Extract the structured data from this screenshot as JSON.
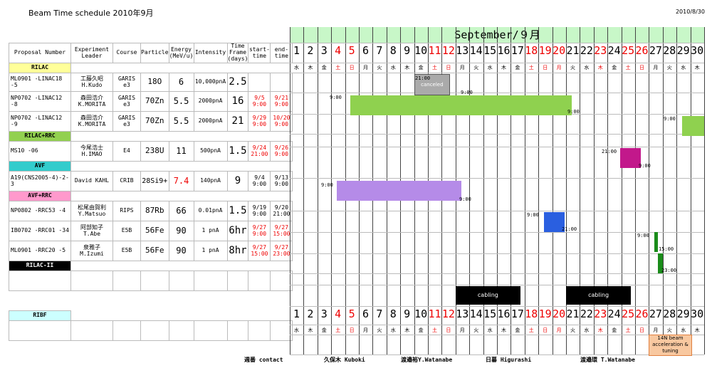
{
  "title": "Beam Time schedule  2010年9月",
  "date": "2010/8/30",
  "month_label": "September/９月",
  "headers": [
    "Proposal Number",
    "Experiment Leader",
    "Course",
    "Particle",
    "Energy (MeV/u)",
    "Intensity",
    "Time Frame (days)",
    "start-time",
    "end-time"
  ],
  "sections": {
    "rilac": "RILAC",
    "rilac_rrc": "RILAC+RRC",
    "avf": "AVF",
    "avf_rrc": "AVF+RRC",
    "rilac2": "RILAC-II",
    "ribf": "RIBF"
  },
  "rows": [
    {
      "pn": "ML0901 -LINAC18 -5",
      "leader": "工藤久昭",
      "leader_en": "H.Kudo",
      "course": "GARIS e3",
      "particle": "18O",
      "energy": "6",
      "intensity": "10,000pnA",
      "frame": "2.5",
      "start": "",
      "end": ""
    },
    {
      "pn": "NP0702 -LINAC12 -8",
      "leader": "森田浩介",
      "leader_en": "K.MORITA",
      "course": "GARIS e3",
      "particle": "70Zn",
      "energy": "5.5",
      "intensity": "2000pnA",
      "frame": "16",
      "start": "9/5 9:00",
      "end": "9/21 9:00"
    },
    {
      "pn": "NP0702 -LINAC12 -9",
      "leader": "森田浩介",
      "leader_en": "K.MORITA",
      "course": "GARIS e3",
      "particle": "70Zn",
      "energy": "5.5",
      "intensity": "2000pnA",
      "frame": "21",
      "start": "9/29 9:00",
      "end": "10/20 9:00"
    },
    {
      "pn": "MS10    -06",
      "leader": "今尾浩士",
      "leader_en": "H.IMAO",
      "course": "E4",
      "particle": "238U",
      "energy": "11",
      "intensity": "500pnA",
      "frame": "1.5",
      "start": "9/24 21:00",
      "end": "9/26 9:00"
    },
    {
      "pn": "A19(CNS2005-4)-2-3",
      "leader": "David KAHL",
      "leader_en": "",
      "course": "CRIB",
      "particle": "28Si9+",
      "energy": "7.4",
      "intensity": "140pnA",
      "frame": "9",
      "start": "9/4 9:00",
      "end": "9/13 9:00"
    },
    {
      "pn": "NP0802 -RRC53   -4",
      "leader": "松尾由賀利",
      "leader_en": "Y.Matsuo",
      "course": "RIPS",
      "particle": "87Rb",
      "energy": "66",
      "intensity": "0.01pnA",
      "frame": "1.5",
      "start": "9/19 9:00",
      "end": "9/20 21:00"
    },
    {
      "pn": "IB0702 -RRC01  -34",
      "leader": "阿部知子",
      "leader_en": "T.Abe",
      "course": "E5B",
      "particle": "56Fe",
      "energy": "90",
      "intensity": "1 pnA",
      "frame": "6hr",
      "start": "9/27 9:00",
      "end": "9/27 15:00"
    },
    {
      "pn": "ML0901 -RRC20   -5",
      "leader": "泉雅子",
      "leader_en": "M.Izumi",
      "course": "E5B",
      "particle": "56Fe",
      "energy": "90",
      "intensity": "1 pnA",
      "frame": "8hr",
      "start": "9/27 15:00",
      "end": "9/27 23:00"
    }
  ],
  "days": [
    "1",
    "2",
    "3",
    "4",
    "5",
    "6",
    "7",
    "8",
    "9",
    "10",
    "11",
    "12",
    "13",
    "14",
    "15",
    "16",
    "17",
    "18",
    "19",
    "20",
    "21",
    "22",
    "23",
    "24",
    "25",
    "26",
    "27",
    "28",
    "29",
    "30"
  ],
  "dows": [
    "水",
    "木",
    "金",
    "土",
    "日",
    "月",
    "火",
    "水",
    "木",
    "金",
    "土",
    "日",
    "月",
    "火",
    "水",
    "木",
    "金",
    "土",
    "日",
    "月",
    "火",
    "水",
    "木",
    "金",
    "土",
    "日",
    "月",
    "火",
    "水",
    "木"
  ],
  "red_days": [
    3,
    4,
    10,
    11,
    17,
    18,
    19,
    22,
    24,
    25
  ],
  "bar_labels": {
    "canceled": "canceled",
    "cabling": "cabling",
    "ribf_note": "14N beam acceleration & tuning"
  },
  "contact_label": "週番 contact",
  "contacts": [
    "久保木 Kuboki",
    "渡邉裕Y.Watanabe",
    "日暮 Higurashi",
    "渡邉環 T.Watanabe"
  ],
  "times": {
    "t1": "21:00",
    "t2": "9:00",
    "t3": "9:00",
    "t4": "9:00",
    "t5": "9:00",
    "t6": "21:00",
    "t7": "9:00",
    "t8": "9:00",
    "t9": "9:00",
    "t10": "9:00",
    "t11": "21:00",
    "t12": "9:00",
    "t13": "15:00",
    "t14": "23:00"
  },
  "colors": {
    "green": "#8fd14f",
    "purple": "#b58be8",
    "magenta": "#c2188b",
    "blue": "#2a5fe0",
    "dkgreen": "#1a8c1a",
    "gray": "#c0c0c0",
    "header_green": "#c8f7c8",
    "rilac_yellow": "#ffff99",
    "rrc_green": "#92d050",
    "avf_cyan": "#33cccc",
    "avf_pink": "#ff99cc",
    "ribf_cyan": "#ccffff",
    "orange": "#f8c8a0"
  }
}
